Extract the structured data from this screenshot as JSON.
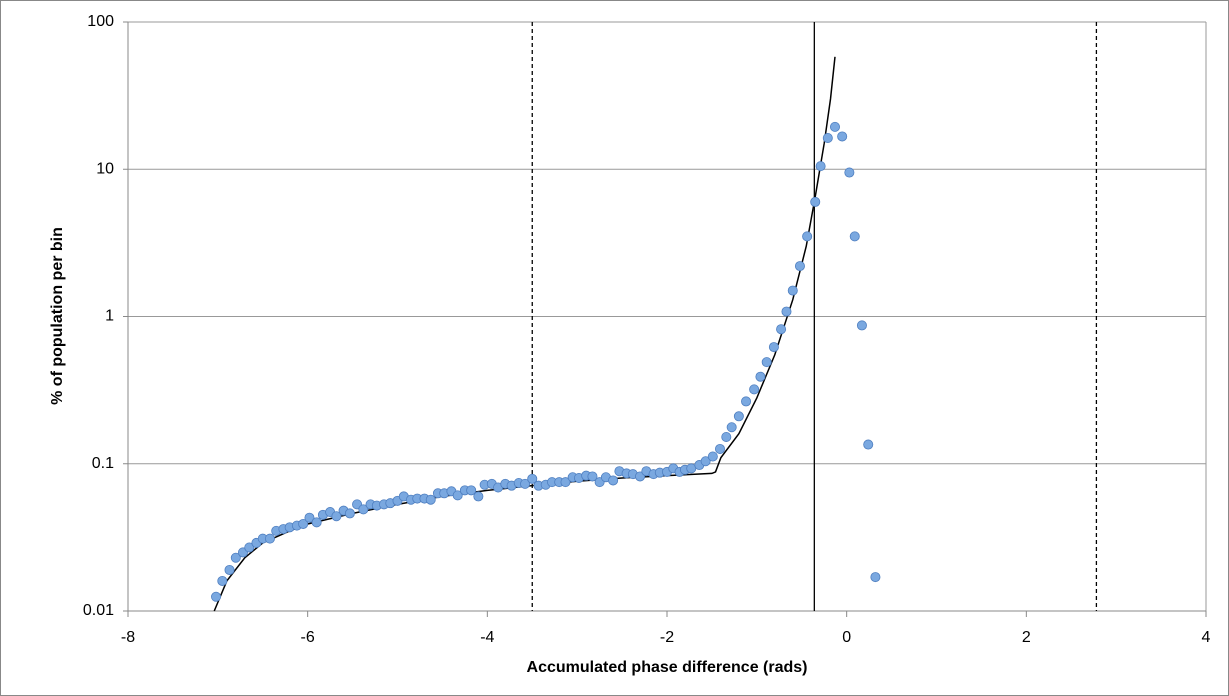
{
  "chart_data": {
    "type": "scatter",
    "xlabel": "Accumulated phase difference (rads)",
    "ylabel": "% of population per bin",
    "xlim": [
      -8,
      4
    ],
    "xticks": [
      -8,
      -6,
      -4,
      -2,
      0,
      2,
      4
    ],
    "ylim": [
      0.01,
      100
    ],
    "yticks": [
      0.01,
      0.1,
      1,
      10,
      100
    ],
    "log_y": true,
    "grid": "y",
    "series": [
      {
        "type": "scatter",
        "color": "#7aa8e0",
        "x": [
          -7.02,
          -6.95,
          -6.87,
          -6.8,
          -6.72,
          -6.65,
          -6.57,
          -6.5,
          -6.42,
          -6.35,
          -6.27,
          -6.2,
          -6.12,
          -6.05,
          -5.98,
          -5.9,
          -5.83,
          -5.75,
          -5.68,
          -5.6,
          -5.53,
          -5.45,
          -5.38,
          -5.3,
          -5.23,
          -5.15,
          -5.08,
          -5.0,
          -4.93,
          -4.85,
          -4.78,
          -4.7,
          -4.63,
          -4.55,
          -4.48,
          -4.4,
          -4.33,
          -4.25,
          -4.18,
          -4.1,
          -4.03,
          -3.95,
          -3.88,
          -3.8,
          -3.73,
          -3.65,
          -3.58,
          -3.5,
          -3.43,
          -3.35,
          -3.28,
          -3.2,
          -3.13,
          -3.05,
          -2.98,
          -2.9,
          -2.83,
          -2.75,
          -2.68,
          -2.6,
          -2.53,
          -2.45,
          -2.38,
          -2.3,
          -2.23,
          -2.15,
          -2.08,
          -2.0,
          -1.93,
          -1.86,
          -1.8,
          -1.73,
          -1.64,
          -1.57,
          -1.49,
          -1.41,
          -1.34,
          -1.28,
          -1.2,
          -1.12,
          -1.03,
          -0.96,
          -0.89,
          -0.81,
          -0.73,
          -0.67,
          -0.6,
          -0.52,
          -0.44,
          -0.35,
          -0.29,
          -0.21,
          -0.13,
          -0.05,
          0.03,
          0.09,
          0.17,
          0.24,
          0.32
        ],
        "values": [
          0.0125,
          0.016,
          0.019,
          0.023,
          0.025,
          0.027,
          0.029,
          0.031,
          0.031,
          0.035,
          0.036,
          0.037,
          0.038,
          0.039,
          0.043,
          0.04,
          0.045,
          0.047,
          0.044,
          0.048,
          0.046,
          0.053,
          0.049,
          0.053,
          0.052,
          0.053,
          0.054,
          0.056,
          0.06,
          0.057,
          0.058,
          0.058,
          0.057,
          0.063,
          0.063,
          0.065,
          0.061,
          0.066,
          0.066,
          0.06,
          0.072,
          0.073,
          0.069,
          0.073,
          0.071,
          0.074,
          0.073,
          0.079,
          0.071,
          0.072,
          0.075,
          0.075,
          0.075,
          0.081,
          0.08,
          0.083,
          0.082,
          0.075,
          0.081,
          0.077,
          0.089,
          0.086,
          0.085,
          0.082,
          0.089,
          0.085,
          0.087,
          0.088,
          0.093,
          0.088,
          0.091,
          0.093,
          0.098,
          0.104,
          0.112,
          0.126,
          0.152,
          0.177,
          0.21,
          0.265,
          0.32,
          0.39,
          0.49,
          0.62,
          0.82,
          1.08,
          1.5,
          2.2,
          3.5,
          6.0,
          10.5,
          16.3,
          19.4,
          16.7,
          9.5,
          3.5,
          0.87,
          0.135,
          0.017
        ]
      },
      {
        "type": "line",
        "color": "#000000",
        "x": [
          -7.04,
          -6.9,
          -6.7,
          -6.5,
          -6.2,
          -6.0,
          -5.5,
          -5.0,
          -4.5,
          -4.0,
          -3.5,
          -3.0,
          -2.5,
          -2.0,
          -1.5,
          -1.46,
          -1.4,
          -1.2,
          -1.0,
          -0.8,
          -0.6,
          -0.45,
          -0.35,
          -0.25,
          -0.18,
          -0.13
        ],
        "values": [
          0.01,
          0.016,
          0.023,
          0.029,
          0.035,
          0.039,
          0.046,
          0.053,
          0.06,
          0.066,
          0.071,
          0.076,
          0.08,
          0.083,
          0.086,
          0.088,
          0.11,
          0.16,
          0.28,
          0.55,
          1.3,
          3.0,
          6.5,
          15,
          30,
          58
        ]
      }
    ],
    "vlines": [
      {
        "x": -3.5,
        "style": "dashed",
        "color": "#000000"
      },
      {
        "x": -0.36,
        "style": "solid",
        "color": "#000000"
      },
      {
        "x": 2.78,
        "style": "dashed",
        "color": "#000000"
      }
    ]
  }
}
